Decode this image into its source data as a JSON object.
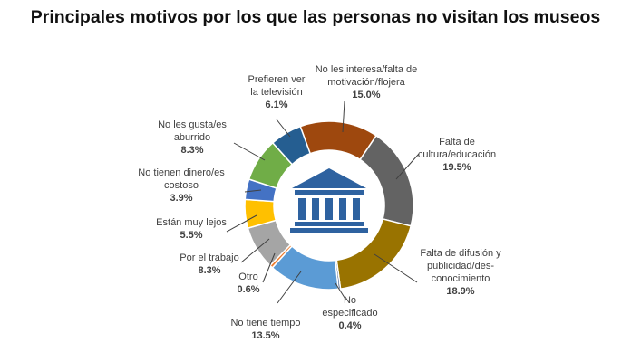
{
  "chart_data": {
    "type": "pie",
    "title": "Principales motivos por los que las personas no visitan los museos",
    "center_icon": "museum-building-icon",
    "slices": [
      {
        "lines": [
          "No les interesa/falta de",
          "motivación/flojera"
        ],
        "value_label": "15.0%",
        "value": 15.0,
        "color": "#9e480e"
      },
      {
        "lines": [
          "Falta de",
          "cultura/educación"
        ],
        "value_label": "19.5%",
        "value": 19.5,
        "color": "#636363"
      },
      {
        "lines": [
          "Falta de difusión y",
          "publicidad/des-",
          "conocimiento"
        ],
        "value_label": "18.9%",
        "value": 18.9,
        "color": "#997300"
      },
      {
        "lines": [
          "No",
          "especificado"
        ],
        "value_label": "0.4%",
        "value": 0.4,
        "color": "#264478"
      },
      {
        "lines": [
          "No tiene tiempo"
        ],
        "value_label": "13.5%",
        "value": 13.5,
        "color": "#5b9bd5"
      },
      {
        "lines": [
          "Otro"
        ],
        "value_label": "0.6%",
        "value": 0.6,
        "color": "#ed7d31"
      },
      {
        "lines": [
          "Por el trabajo"
        ],
        "value_label": "8.3%",
        "value": 8.3,
        "color": "#a5a5a5"
      },
      {
        "lines": [
          "Están muy lejos"
        ],
        "value_label": "5.5%",
        "value": 5.5,
        "color": "#ffc000"
      },
      {
        "lines": [
          "No tienen dinero/es",
          "costoso"
        ],
        "value_label": "3.9%",
        "value": 3.9,
        "color": "#4472c4"
      },
      {
        "lines": [
          "No les gusta/es",
          "aburrido"
        ],
        "value_label": "8.3%",
        "value": 8.3,
        "color": "#70ad47"
      },
      {
        "lines": [
          "Prefieren ver",
          "la televisión"
        ],
        "value_label": "6.1%",
        "value": 6.1,
        "color": "#255e91"
      }
    ]
  }
}
